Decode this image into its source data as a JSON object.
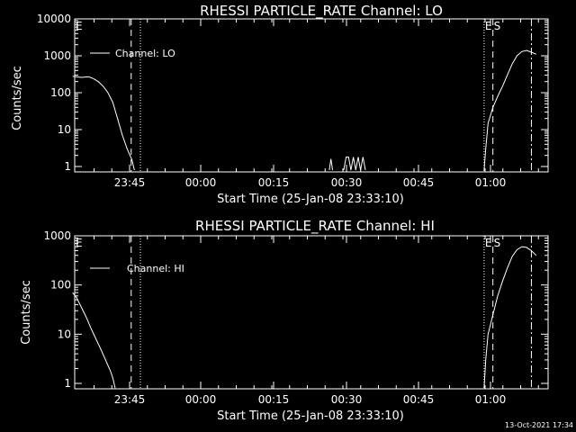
{
  "footer": {
    "stamp": "13-Oct-2021 17:34"
  },
  "chart_data": [
    {
      "type": "line",
      "title": "RHESSI PARTICLE_RATE Channel: LO",
      "xlabel": "Start Time (25-Jan-08 23:33:10)",
      "ylabel": "Counts/sec",
      "y_scale": "log",
      "ylim": [
        0.8,
        10000
      ],
      "xlim": [
        "23:33:10",
        "01:10:00"
      ],
      "x_ticks": [
        "23:45",
        "00:00",
        "00:15",
        "00:30",
        "00:45",
        "01:00"
      ],
      "y_ticks": [
        "1",
        "10",
        "100",
        "1000",
        "10000"
      ],
      "legend": {
        "position": "top-left",
        "entries": [
          "Channel: LO"
        ]
      },
      "markers": [
        {
          "label": "E",
          "time": "23:33:10",
          "style": "dashed"
        },
        {
          "label": "",
          "time": "23:45:20",
          "style": "dashed"
        },
        {
          "label": "",
          "time": "23:47:15",
          "style": "dotted"
        },
        {
          "label": "E",
          "time": "00:58:40",
          "style": "dotted"
        },
        {
          "label": "S",
          "time": "01:00:30",
          "style": "dashed"
        },
        {
          "label": "",
          "time": "01:08:30",
          "style": "dashdot"
        }
      ],
      "series": [
        {
          "name": "Channel: LO",
          "segments": [
            [
              [
                "23:33:10",
                280
              ],
              [
                "23:35:00",
                260
              ],
              [
                "23:36:30",
                270
              ],
              [
                "23:37:30",
                240
              ],
              [
                "23:38:30",
                200
              ],
              [
                "23:39:30",
                150
              ],
              [
                "23:40:30",
                100
              ],
              [
                "23:41:30",
                55
              ],
              [
                "23:42:30",
                20
              ],
              [
                "23:43:30",
                7
              ],
              [
                "23:44:30",
                3
              ],
              [
                "23:45:30",
                1.5
              ],
              [
                "23:46:00",
                0.8
              ]
            ],
            [
              [
                "00:26:30",
                0.8
              ],
              [
                "00:26:50",
                1.6
              ],
              [
                "00:27:10",
                0.8
              ]
            ],
            [
              [
                "00:29:30",
                0.8
              ],
              [
                "00:30:00",
                1.8
              ],
              [
                "00:30:30",
                1.8
              ],
              [
                "00:31:00",
                0.8
              ],
              [
                "00:31:30",
                1.8
              ],
              [
                "00:32:00",
                0.8
              ],
              [
                "00:32:30",
                1.8
              ],
              [
                "00:33:00",
                0.8
              ],
              [
                "00:33:30",
                1.8
              ],
              [
                "00:34:00",
                0.8
              ]
            ],
            [
              [
                "00:58:40",
                0.8
              ],
              [
                "00:59:00",
                3
              ],
              [
                "00:59:30",
                15
              ],
              [
                "01:00:30",
                40
              ],
              [
                "01:01:30",
                80
              ],
              [
                "01:02:30",
                150
              ],
              [
                "01:03:30",
                300
              ],
              [
                "01:04:30",
                600
              ],
              [
                "01:05:30",
                1000
              ],
              [
                "01:06:30",
                1300
              ],
              [
                "01:07:30",
                1400
              ],
              [
                "01:08:30",
                1250
              ],
              [
                "01:09:30",
                1100
              ]
            ]
          ]
        }
      ]
    },
    {
      "type": "line",
      "title": "RHESSI PARTICLE_RATE Channel: HI",
      "xlabel": "Start Time (25-Jan-08 23:33:10)",
      "ylabel": "Counts/sec",
      "y_scale": "log",
      "ylim": [
        0.8,
        1000
      ],
      "xlim": [
        "23:33:10",
        "01:10:00"
      ],
      "x_ticks": [
        "23:45",
        "00:00",
        "00:15",
        "00:30",
        "00:45",
        "01:00"
      ],
      "y_ticks": [
        "1",
        "10",
        "100",
        "1000"
      ],
      "legend": {
        "position": "top-left",
        "entries": [
          "Channel: HI"
        ]
      },
      "markers": [
        {
          "label": "E",
          "time": "23:33:10",
          "style": "dashed"
        },
        {
          "label": "",
          "time": "23:45:20",
          "style": "dashed"
        },
        {
          "label": "",
          "time": "23:47:15",
          "style": "dotted"
        },
        {
          "label": "E",
          "time": "00:58:40",
          "style": "dotted"
        },
        {
          "label": "S",
          "time": "01:00:30",
          "style": "dashed"
        },
        {
          "label": "",
          "time": "01:08:30",
          "style": "dashdot"
        }
      ],
      "series": [
        {
          "name": "Channel: HI",
          "segments": [
            [
              [
                "23:33:10",
                70
              ],
              [
                "23:34:00",
                55
              ],
              [
                "23:35:00",
                35
              ],
              [
                "23:36:00",
                22
              ],
              [
                "23:37:00",
                13
              ],
              [
                "23:38:00",
                8
              ],
              [
                "23:39:00",
                5
              ],
              [
                "23:40:00",
                3
              ],
              [
                "23:41:00",
                1.8
              ],
              [
                "23:41:30",
                1.3
              ],
              [
                "23:42:00",
                0.8
              ]
            ],
            [
              [
                "00:58:40",
                0.8
              ],
              [
                "00:59:00",
                3
              ],
              [
                "00:59:30",
                10
              ],
              [
                "01:00:30",
                25
              ],
              [
                "01:01:30",
                60
              ],
              [
                "01:02:30",
                120
              ],
              [
                "01:03:30",
                220
              ],
              [
                "01:04:30",
                380
              ],
              [
                "01:05:30",
                520
              ],
              [
                "01:06:30",
                600
              ],
              [
                "01:07:30",
                580
              ],
              [
                "01:08:30",
                500
              ],
              [
                "01:09:30",
                400
              ]
            ]
          ]
        }
      ]
    }
  ]
}
